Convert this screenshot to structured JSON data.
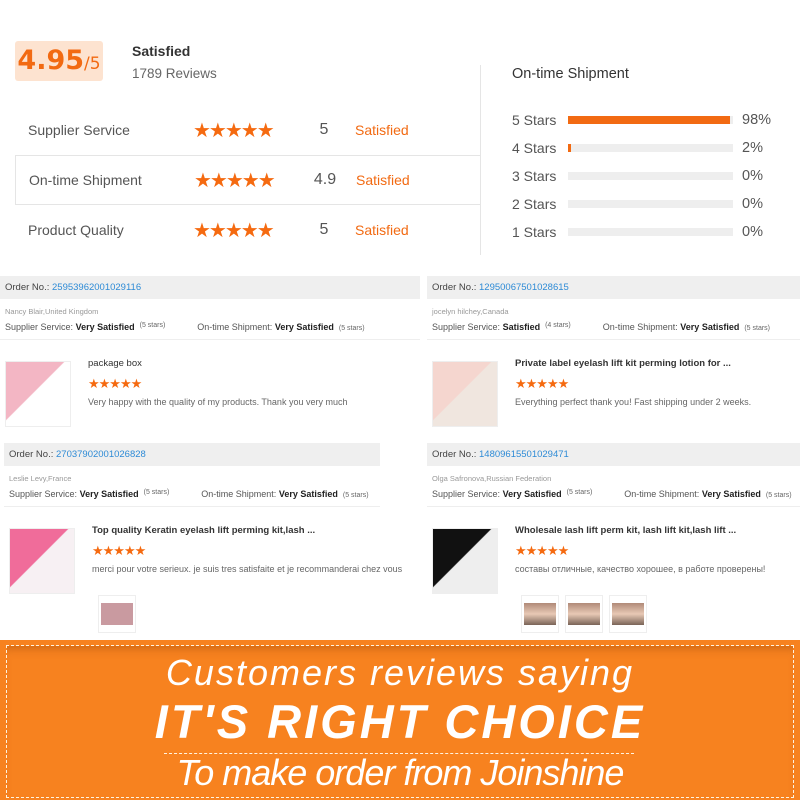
{
  "summary": {
    "score": "4.95",
    "out_of": "/5",
    "status": "Satisfied",
    "reviews": "1789 Reviews"
  },
  "ratings": [
    {
      "label": "Supplier Service",
      "stars": "★★★★★",
      "value": "5",
      "status": "Satisfied"
    },
    {
      "label": "On-time Shipment",
      "stars": "★★★★★",
      "value": "4.9",
      "status": "Satisfied"
    },
    {
      "label": "Product Quality",
      "stars": "★★★★★",
      "value": "5",
      "status": "Satisfied"
    }
  ],
  "shipment": {
    "title": "On-time Shipment",
    "bars": [
      {
        "label": "5 Stars",
        "pct": "98%",
        "fill": 98
      },
      {
        "label": "4 Stars",
        "pct": "2%",
        "fill": 2
      },
      {
        "label": "3 Stars",
        "pct": "0%",
        "fill": 0
      },
      {
        "label": "2 Stars",
        "pct": "0%",
        "fill": 0
      },
      {
        "label": "1 Stars",
        "pct": "0%",
        "fill": 0
      }
    ]
  },
  "colors": {
    "accent": "#f26a12",
    "link": "#2e8bd6",
    "banner": "#f7821f"
  },
  "reviews": [
    {
      "order_label": "Order No.:",
      "order": "25953962001029116",
      "buyer": "Nancy Blair,United Kingdom",
      "ss_label": "Supplier Service:",
      "ss_val": "Very Satisfied",
      "ss_stars": "(5 stars)",
      "os_label": "On-time Shipment:",
      "os_val": "Very Satisfied",
      "os_stars": "(5 stars)",
      "product": "package box",
      "stars": "★★★★★",
      "comment": "Very happy with the quality of my products. Thank you very much",
      "photos": 0
    },
    {
      "order_label": "Order No.:",
      "order": "12950067501028615",
      "buyer": "jocelyn hilchey,Canada",
      "ss_label": "Supplier Service:",
      "ss_val": "Satisfied",
      "ss_stars": "(4 stars)",
      "os_label": "On-time Shipment:",
      "os_val": "Very Satisfied",
      "os_stars": "(5 stars)",
      "product": "Private label eyelash lift kit perming lotion for ...",
      "stars": "★★★★★",
      "comment": "Everything perfect thank you! Fast shipping under 2 weeks.",
      "photos": 0
    },
    {
      "order_label": "Order No.:",
      "order": "27037902001026828",
      "buyer": "Leslie Levy,France",
      "ss_label": "Supplier Service:",
      "ss_val": "Very Satisfied",
      "ss_stars": "(5 stars)",
      "os_label": "On-time Shipment:",
      "os_val": "Very Satisfied",
      "os_stars": "(5 stars)",
      "product": "Top quality Keratin eyelash lift perming kit,lash ...",
      "stars": "★★★★★",
      "comment": "merci pour votre serieux. je suis tres satisfaite et je recommanderai chez vous",
      "photos": 1
    },
    {
      "order_label": "Order No.:",
      "order": "14809615501029471",
      "buyer": "Olga Safronova,Russian Federation",
      "ss_label": "Supplier Service:",
      "ss_val": "Very Satisfied",
      "ss_stars": "(5 stars)",
      "os_label": "On-time Shipment:",
      "os_val": "Very Satisfied",
      "os_stars": "(5 stars)",
      "product": "Wholesale lash lift perm kit, lash lift kit,lash lift ...",
      "stars": "★★★★★",
      "comment": "составы отличные, качество хорошее, в работе проверены!",
      "photos": 3
    }
  ],
  "banner": {
    "line1": "Customers reviews saying",
    "line2": "IT'S RIGHT CHOICE",
    "line3": "To make order from Joinshine"
  }
}
